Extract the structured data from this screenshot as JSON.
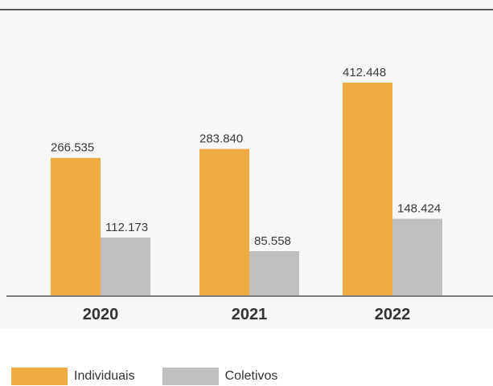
{
  "chart_data": {
    "type": "bar",
    "categories": [
      "2020",
      "2021",
      "2022"
    ],
    "series": [
      {
        "name": "Individuais",
        "values": [
          266535,
          283840,
          412448
        ],
        "labels": [
          "266.535",
          "283.840",
          "412.448"
        ],
        "color": "#f0ac42"
      },
      {
        "name": "Coletivos",
        "values": [
          112173,
          85558,
          148424
        ],
        "labels": [
          "112.173",
          "85.558",
          "148.424"
        ],
        "color": "#c0bfbd"
      }
    ],
    "title": "",
    "xlabel": "",
    "ylabel": "",
    "ylim": [
      0,
      500000
    ],
    "grid": false,
    "legend": "bottom-left"
  },
  "colors": {
    "panel_background": "#f7f7f7",
    "top_rule": "#555555",
    "axis": "#555555"
  }
}
